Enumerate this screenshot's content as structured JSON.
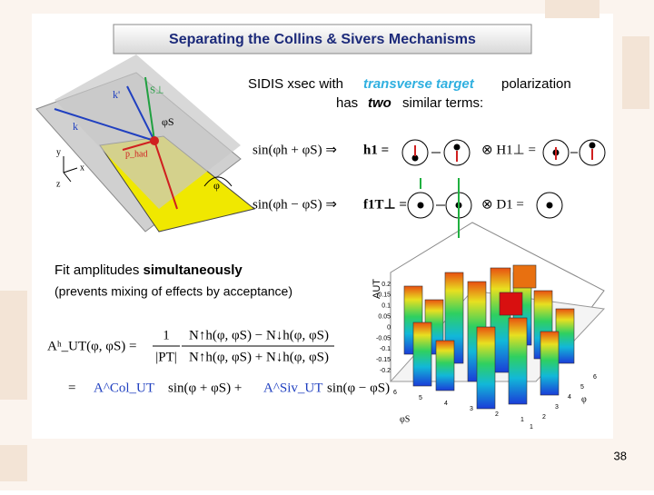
{
  "title": "Separating the Collins & Sivers Mechanisms",
  "intro": {
    "line1_a": "SIDIS xsec with",
    "line1_b": "transverse target",
    "line1_c": "polarization",
    "line2_a": "has",
    "line2_b": "two",
    "line2_c": "similar terms:"
  },
  "diagram": {
    "k_prime": "k'",
    "s_perp": "S⊥",
    "k": "k",
    "phi_s": "φS",
    "p_had": "p_had",
    "phi": "φ",
    "axis_y": "y",
    "axis_x": "x",
    "axis_z": "z"
  },
  "terms": [
    {
      "formula": "sin(φh + φS) ⇒",
      "lhs": "h1 =",
      "rhs": "⊗ H1⊥ ="
    },
    {
      "formula": "sin(φh − φS) ⇒",
      "lhs": "f1T⊥ =",
      "rhs": "⊗ D1 ="
    }
  ],
  "fit": {
    "line1_a": "Fit amplitudes",
    "line1_b": "simultaneously",
    "line2": "(prevents mixing of effects by acceptance)"
  },
  "formula": {
    "lhs": "Aʰ_UT(φ, φS) =",
    "num_frac": "1",
    "den_frac": "|PT|",
    "numerator": "N↑h(φ, φS) − N↓h(φ, φS)",
    "denominator": "N↑h(φ, φS) + N↓h(φ, φS)",
    "line2_eq": "=",
    "col": "A^Col_UT",
    "col_sin": "sin(φ + φS) +",
    "siv": "A^Siv_UT",
    "siv_sin": "sin(φ − φS)"
  },
  "plot": {
    "z_label": "AUT",
    "z_ticks": [
      "0.2",
      "0.15",
      "0.1",
      "0.05",
      "0",
      "-0.05",
      "-0.1",
      "-0.15",
      "-0.2"
    ],
    "x_ticks": [
      "1",
      "2",
      "3",
      "4",
      "5",
      "6"
    ],
    "y_ticks": [
      "6",
      "5",
      "4",
      "3",
      "2",
      "1"
    ],
    "x_label": "φ",
    "y_label": "φS"
  },
  "page_number": "38"
}
